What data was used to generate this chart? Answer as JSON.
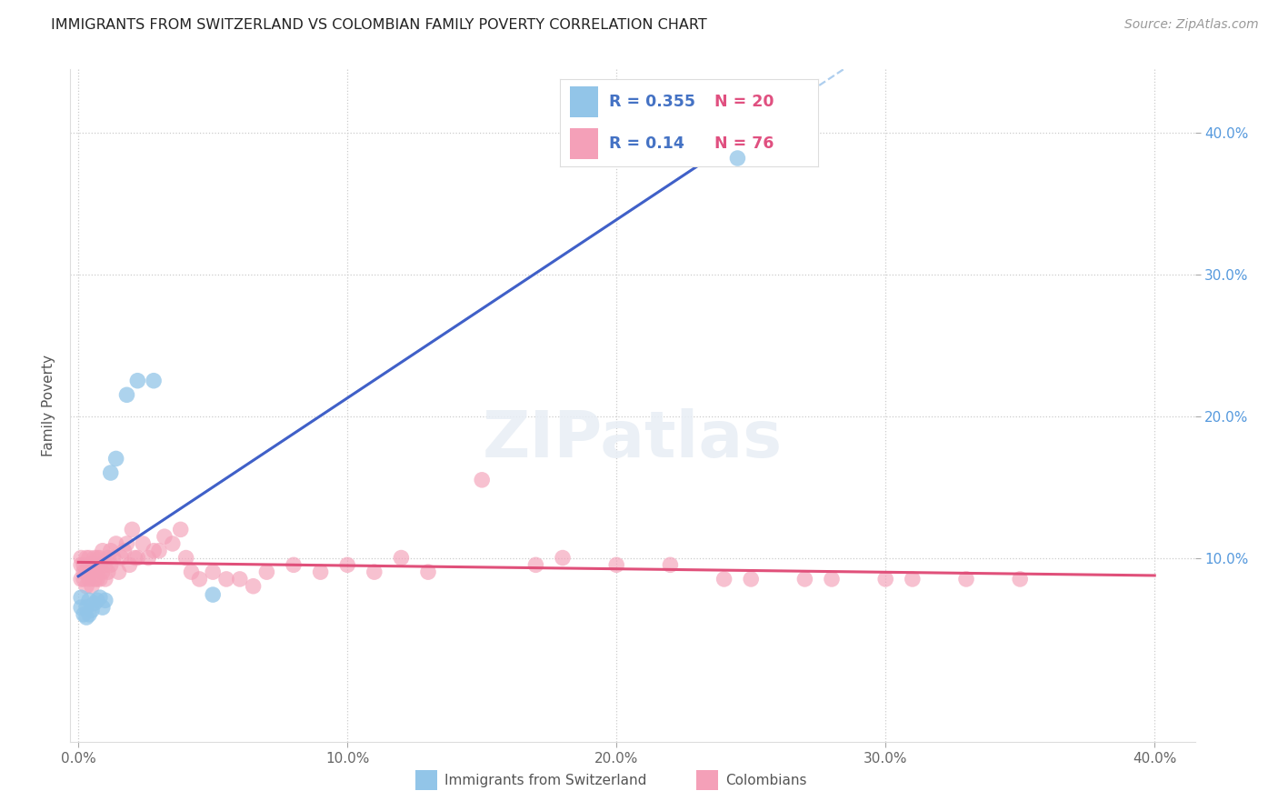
{
  "title": "IMMIGRANTS FROM SWITZERLAND VS COLOMBIAN FAMILY POVERTY CORRELATION CHART",
  "source": "Source: ZipAtlas.com",
  "ylabel": "Family Poverty",
  "xlim_min": -0.003,
  "xlim_max": 0.415,
  "ylim_min": -0.03,
  "ylim_max": 0.445,
  "xticks": [
    0.0,
    0.1,
    0.2,
    0.3,
    0.4
  ],
  "xticklabels": [
    "0.0%",
    "10.0%",
    "20.0%",
    "30.0%",
    "40.0%"
  ],
  "yticks": [
    0.1,
    0.2,
    0.3,
    0.4
  ],
  "yticklabels": [
    "10.0%",
    "20.0%",
    "30.0%",
    "40.0%"
  ],
  "swiss_color": "#92C5E8",
  "swiss_line_color": "#4060C8",
  "colombian_color": "#F4A0B8",
  "colombian_line_color": "#E0507A",
  "dashed_color": "#AACCEE",
  "swiss_R": 0.355,
  "swiss_N": 20,
  "colombian_R": 0.14,
  "colombian_N": 76,
  "legend_label1": "Immigrants from Switzerland",
  "legend_label2": "Colombians",
  "legend_R_color": "#4472C4",
  "legend_N_color": "#E05080",
  "grid_color": "#CCCCCC",
  "title_fontsize": 11.5,
  "source_fontsize": 10,
  "tick_fontsize": 11,
  "ylabel_fontsize": 11,
  "swiss_x": [
    0.001,
    0.001,
    0.002,
    0.003,
    0.003,
    0.004,
    0.004,
    0.005,
    0.006,
    0.007,
    0.008,
    0.009,
    0.01,
    0.012,
    0.014,
    0.018,
    0.022,
    0.028,
    0.05,
    0.245
  ],
  "swiss_y": [
    0.072,
    0.065,
    0.06,
    0.058,
    0.065,
    0.07,
    0.06,
    0.063,
    0.068,
    0.07,
    0.072,
    0.065,
    0.07,
    0.16,
    0.17,
    0.215,
    0.225,
    0.225,
    0.074,
    0.382
  ],
  "colombian_x": [
    0.001,
    0.001,
    0.001,
    0.002,
    0.002,
    0.002,
    0.003,
    0.003,
    0.003,
    0.004,
    0.004,
    0.004,
    0.005,
    0.005,
    0.005,
    0.006,
    0.006,
    0.006,
    0.007,
    0.007,
    0.007,
    0.008,
    0.008,
    0.008,
    0.009,
    0.009,
    0.01,
    0.01,
    0.011,
    0.011,
    0.012,
    0.012,
    0.013,
    0.014,
    0.015,
    0.016,
    0.017,
    0.018,
    0.019,
    0.02,
    0.021,
    0.022,
    0.024,
    0.026,
    0.028,
    0.03,
    0.032,
    0.035,
    0.038,
    0.04,
    0.042,
    0.045,
    0.05,
    0.055,
    0.06,
    0.065,
    0.07,
    0.08,
    0.09,
    0.1,
    0.12,
    0.15,
    0.17,
    0.2,
    0.22,
    0.25,
    0.28,
    0.3,
    0.31,
    0.33,
    0.35,
    0.27,
    0.24,
    0.18,
    0.13,
    0.11
  ],
  "colombian_y": [
    0.1,
    0.095,
    0.085,
    0.09,
    0.085,
    0.095,
    0.08,
    0.09,
    0.1,
    0.085,
    0.095,
    0.1,
    0.08,
    0.09,
    0.095,
    0.085,
    0.095,
    0.1,
    0.085,
    0.095,
    0.1,
    0.085,
    0.095,
    0.1,
    0.09,
    0.105,
    0.085,
    0.095,
    0.09,
    0.1,
    0.095,
    0.105,
    0.1,
    0.11,
    0.09,
    0.1,
    0.105,
    0.11,
    0.095,
    0.12,
    0.1,
    0.1,
    0.11,
    0.1,
    0.105,
    0.105,
    0.115,
    0.11,
    0.12,
    0.1,
    0.09,
    0.085,
    0.09,
    0.085,
    0.085,
    0.08,
    0.09,
    0.095,
    0.09,
    0.095,
    0.1,
    0.155,
    0.095,
    0.095,
    0.095,
    0.085,
    0.085,
    0.085,
    0.085,
    0.085,
    0.085,
    0.085,
    0.085,
    0.1,
    0.09,
    0.09
  ]
}
